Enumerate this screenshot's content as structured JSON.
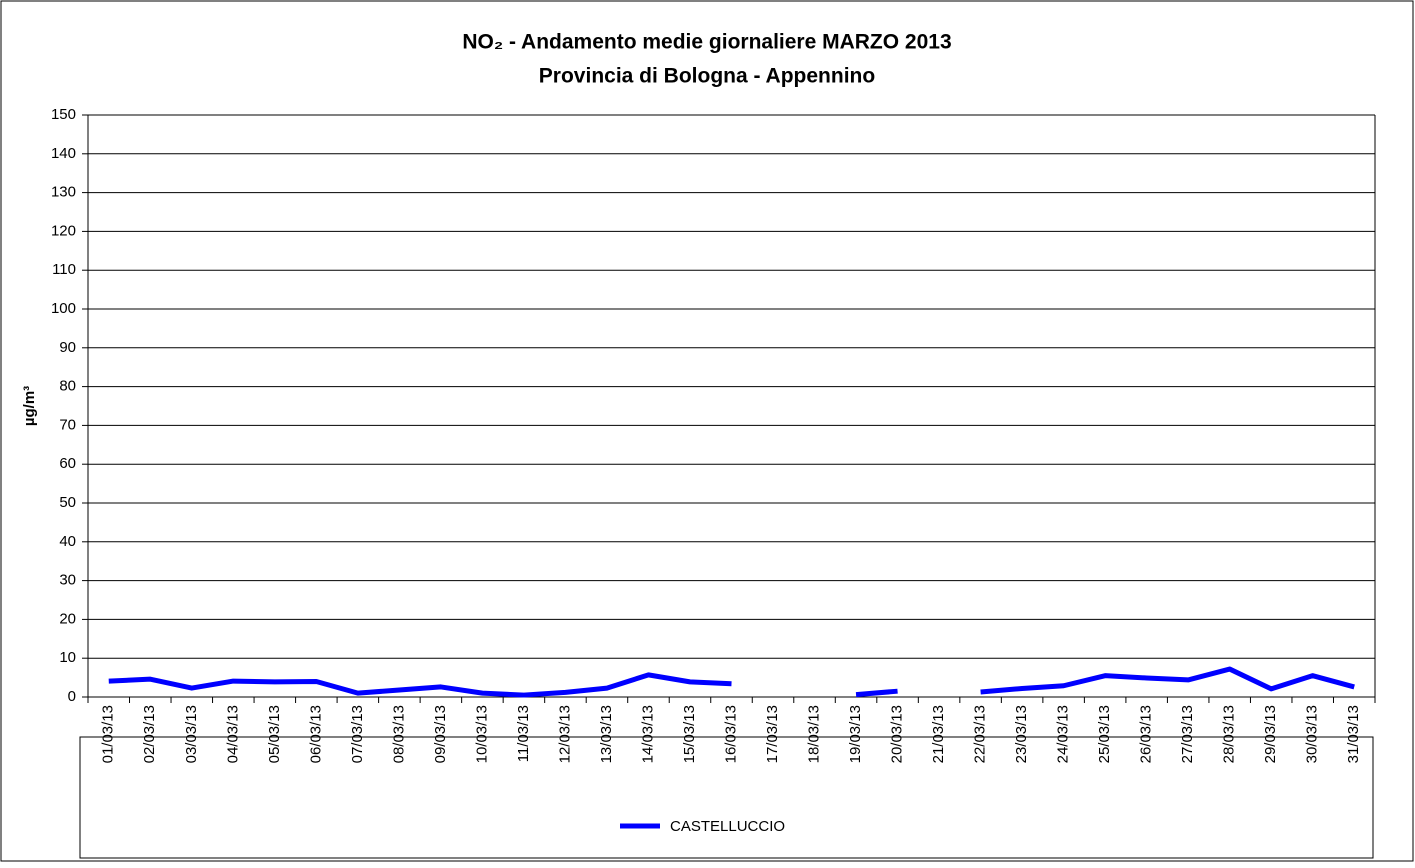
{
  "chart_data": {
    "type": "line",
    "title": "NO₂ - Andamento medie giornaliere MARZO 2013",
    "subtitle": "Provincia di Bologna - Appennino",
    "y_label": "µg/m³",
    "categories": [
      "01/03/13",
      "02/03/13",
      "03/03/13",
      "04/03/13",
      "05/03/13",
      "06/03/13",
      "07/03/13",
      "08/03/13",
      "09/03/13",
      "10/03/13",
      "11/03/13",
      "12/03/13",
      "13/03/13",
      "14/03/13",
      "15/03/13",
      "16/03/13",
      "17/03/13",
      "18/03/13",
      "19/03/13",
      "20/03/13",
      "21/03/13",
      "22/03/13",
      "23/03/13",
      "24/03/13",
      "25/03/13",
      "26/03/13",
      "27/03/13",
      "28/03/13",
      "29/03/13",
      "30/03/13",
      "31/03/13"
    ],
    "series": [
      {
        "name": "CASTELLUCCIO",
        "color": "#0000ff",
        "values": [
          4.1,
          4.6,
          2.3,
          4.1,
          3.9,
          4.0,
          1.0,
          1.8,
          2.6,
          1.0,
          0.5,
          1.2,
          2.3,
          5.7,
          3.9,
          3.4,
          null,
          null,
          0.6,
          1.5,
          null,
          1.3,
          2.2,
          2.9,
          5.5,
          4.9,
          4.4,
          7.2,
          2.1,
          5.5,
          2.6
        ]
      }
    ],
    "ylim": [
      0,
      150
    ],
    "yticks": [
      0,
      10,
      20,
      30,
      40,
      50,
      60,
      70,
      80,
      90,
      100,
      110,
      120,
      130,
      140,
      150
    ],
    "grid": true
  }
}
